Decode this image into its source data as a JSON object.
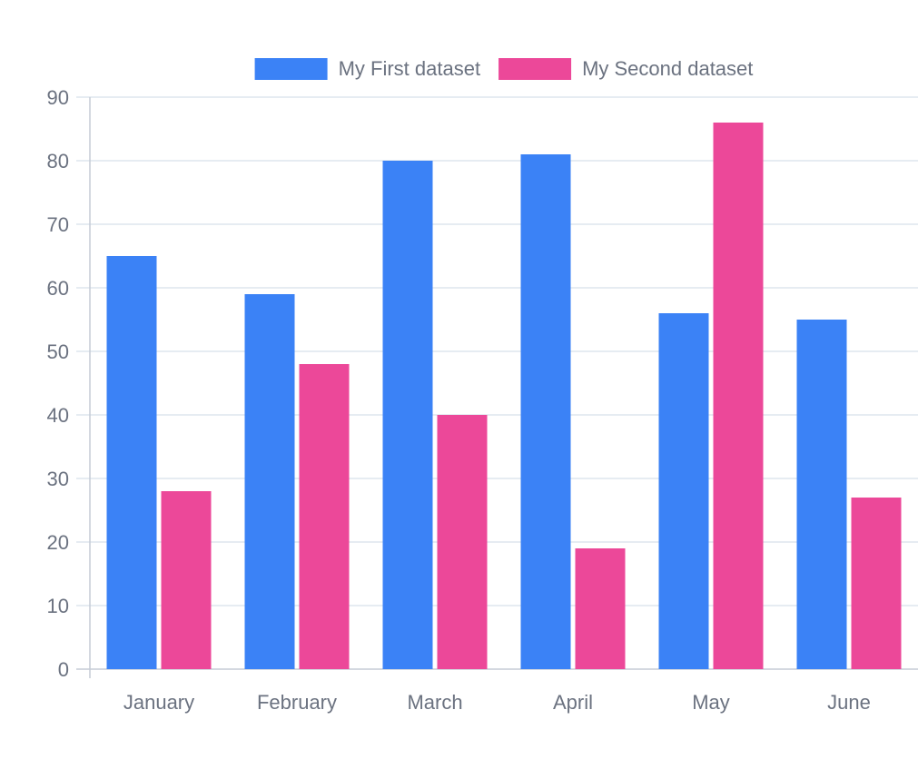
{
  "chart_data": {
    "type": "bar",
    "title": "",
    "xlabel": "",
    "ylabel": "",
    "categories": [
      "January",
      "February",
      "March",
      "April",
      "May",
      "June"
    ],
    "series": [
      {
        "name": "My First dataset",
        "color": "#3b82f6",
        "values": [
          65,
          59,
          80,
          81,
          56,
          55
        ]
      },
      {
        "name": "My Second dataset",
        "color": "#ec4899",
        "values": [
          28,
          48,
          40,
          19,
          86,
          27
        ]
      }
    ],
    "ylim": [
      0,
      90
    ],
    "yticks": [
      "0",
      "10",
      "20",
      "30",
      "40",
      "50",
      "60",
      "70",
      "80",
      "90"
    ],
    "grid": true,
    "legend_position": "top"
  }
}
